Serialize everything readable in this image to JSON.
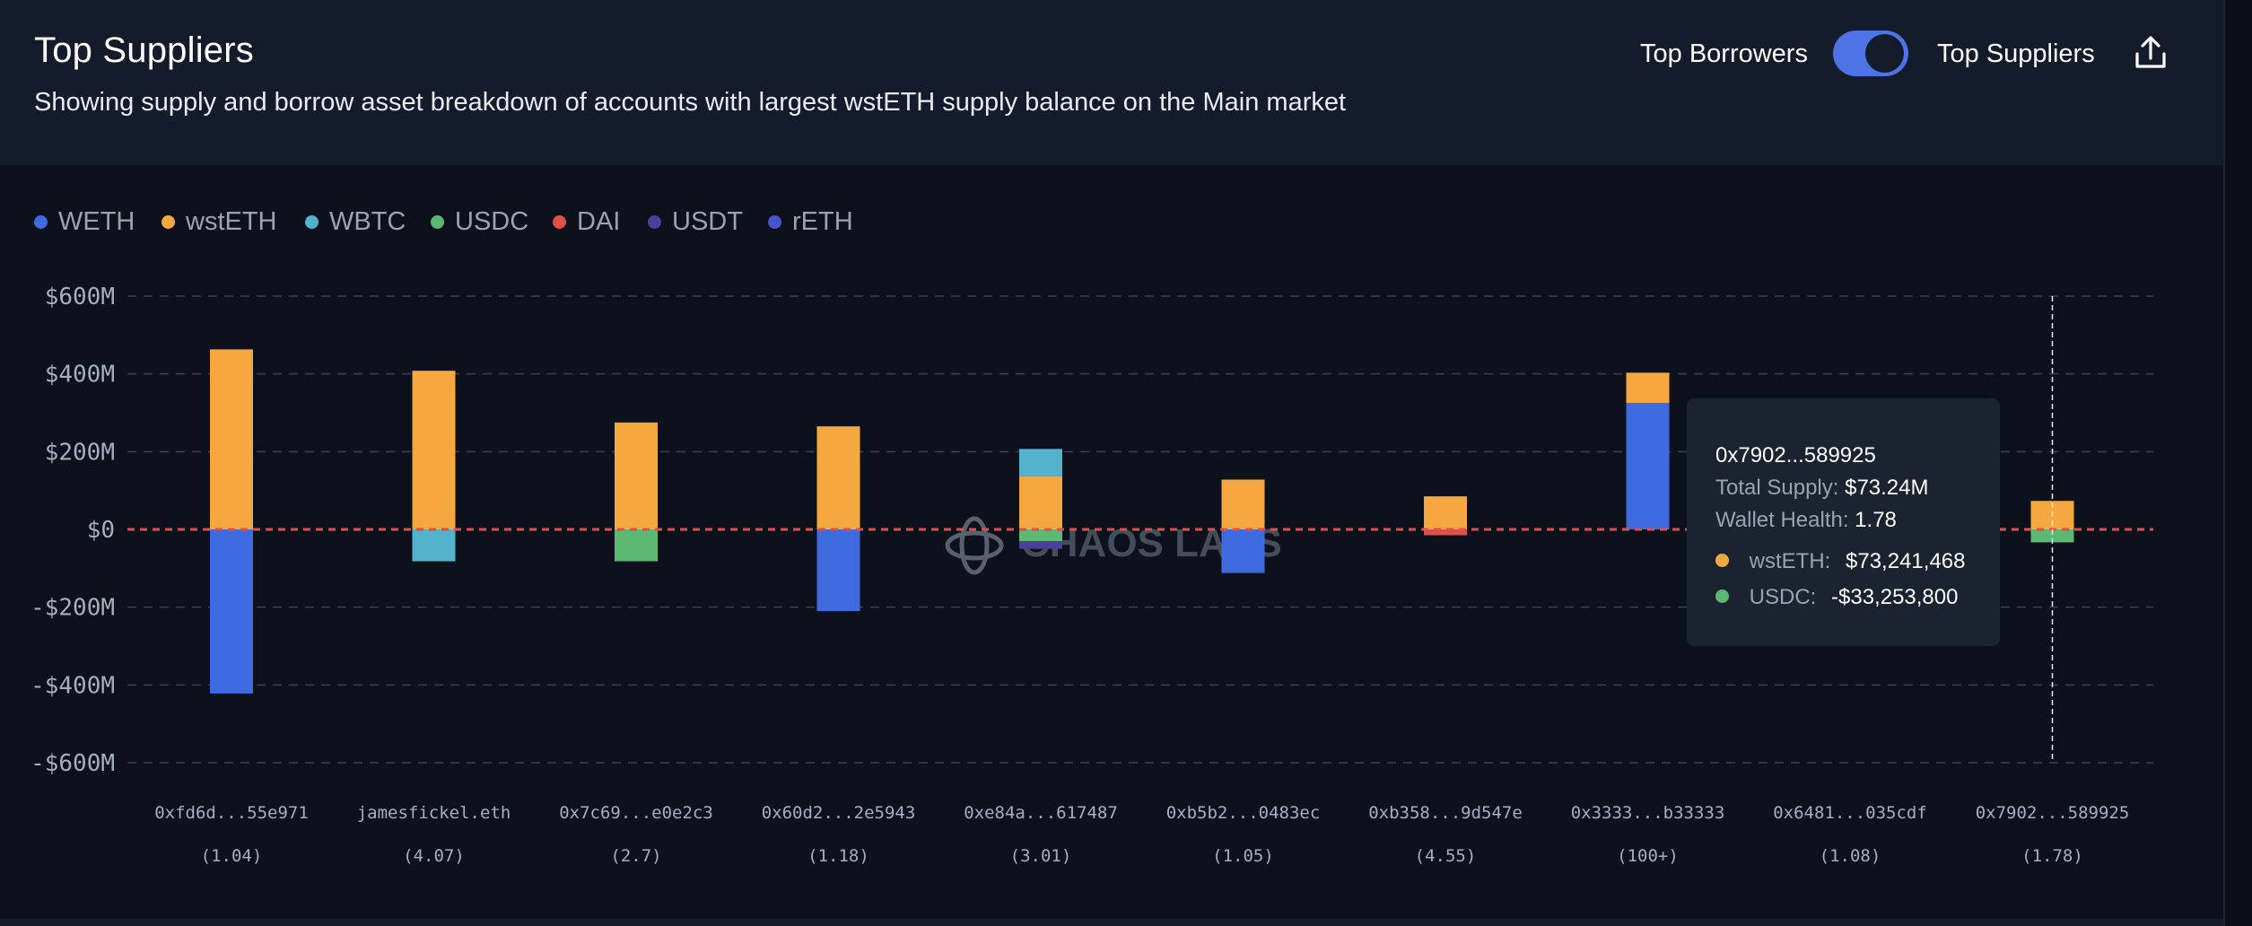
{
  "header": {
    "title": "Top Suppliers",
    "subtitle": "Showing supply and borrow asset breakdown of accounts with largest wstETH supply balance on the Main market",
    "toggle_left_label": "Top Borrowers",
    "toggle_right_label": "Top Suppliers",
    "toggle_on": true,
    "share_icon": "share-upload-icon"
  },
  "colors": {
    "accent": "#4e73e6",
    "zero_line": "#e0504a"
  },
  "legend": [
    {
      "label": "WETH",
      "color": "#3f6be0"
    },
    {
      "label": "wstETH",
      "color": "#f4a83f"
    },
    {
      "label": "WBTC",
      "color": "#55b2cc"
    },
    {
      "label": "USDC",
      "color": "#5cb872"
    },
    {
      "label": "DAI",
      "color": "#e0504a"
    },
    {
      "label": "USDT",
      "color": "#4b3f9b"
    },
    {
      "label": "rETH",
      "color": "#4854cf"
    }
  ],
  "watermark": "CHAOS LABS",
  "chart_data": {
    "type": "bar",
    "stacked": true,
    "ylim": [
      -600000000,
      600000000
    ],
    "ytick_values": [
      600000000,
      400000000,
      200000000,
      0,
      -200000000,
      -400000000,
      -600000000
    ],
    "ytick_labels": [
      "$600M",
      "$400M",
      "$200M",
      "$0",
      "-$200M",
      "-$400M",
      "-$600M"
    ],
    "grid": true,
    "legend_position": "top-left",
    "categories": [
      "0xfd6d...55e971",
      "jamesfickel.eth",
      "0x7c69...e0e2c3",
      "0x60d2...2e5943",
      "0xe84a...617487",
      "0xb5b2...0483ec",
      "0xb358...9d547e",
      "0x3333...b33333",
      "0x6481...035cdf",
      "0x7902...589925"
    ],
    "sublabels": [
      "(1.04)",
      "(4.07)",
      "(2.7)",
      "(1.18)",
      "(3.01)",
      "(1.05)",
      "(4.55)",
      "(100+)",
      "(1.08)",
      "(1.78)"
    ],
    "series": [
      {
        "name": "WETH",
        "color": "#3f6be0",
        "values": [
          -422000000,
          0,
          0,
          -210000000,
          0,
          -112000000,
          0,
          325000000,
          0,
          0
        ]
      },
      {
        "name": "wstETH",
        "color": "#f4a83f",
        "values": [
          463000000,
          408000000,
          275000000,
          265000000,
          137000000,
          128000000,
          85000000,
          78000000,
          0,
          73241468
        ]
      },
      {
        "name": "WBTC",
        "color": "#55b2cc",
        "values": [
          0,
          -82000000,
          0,
          0,
          70000000,
          0,
          0,
          0,
          0,
          0
        ]
      },
      {
        "name": "USDC",
        "color": "#5cb872",
        "values": [
          0,
          0,
          -82000000,
          0,
          -30000000,
          0,
          0,
          0,
          0,
          -33253800
        ]
      },
      {
        "name": "DAI",
        "color": "#e0504a",
        "values": [
          0,
          0,
          0,
          0,
          0,
          0,
          -15000000,
          0,
          0,
          0
        ]
      },
      {
        "name": "USDT",
        "color": "#4b3f9b",
        "values": [
          0,
          0,
          0,
          0,
          -20000000,
          0,
          0,
          0,
          0,
          0
        ]
      },
      {
        "name": "rETH",
        "color": "#4854cf",
        "values": [
          0,
          0,
          0,
          0,
          0,
          0,
          0,
          0,
          0,
          0
        ]
      }
    ],
    "hover_index": 9
  },
  "tooltip": {
    "address": "0x7902...589925",
    "total_supply_label": "Total Supply:",
    "total_supply_value": "$73.24M",
    "health_label": "Wallet Health:",
    "health_value": "1.78",
    "items": [
      {
        "label": "wstETH:",
        "value": "$73,241,468",
        "color": "#f4a83f"
      },
      {
        "label": "USDC:",
        "value": "-$33,253,800",
        "color": "#5cb872"
      }
    ]
  }
}
